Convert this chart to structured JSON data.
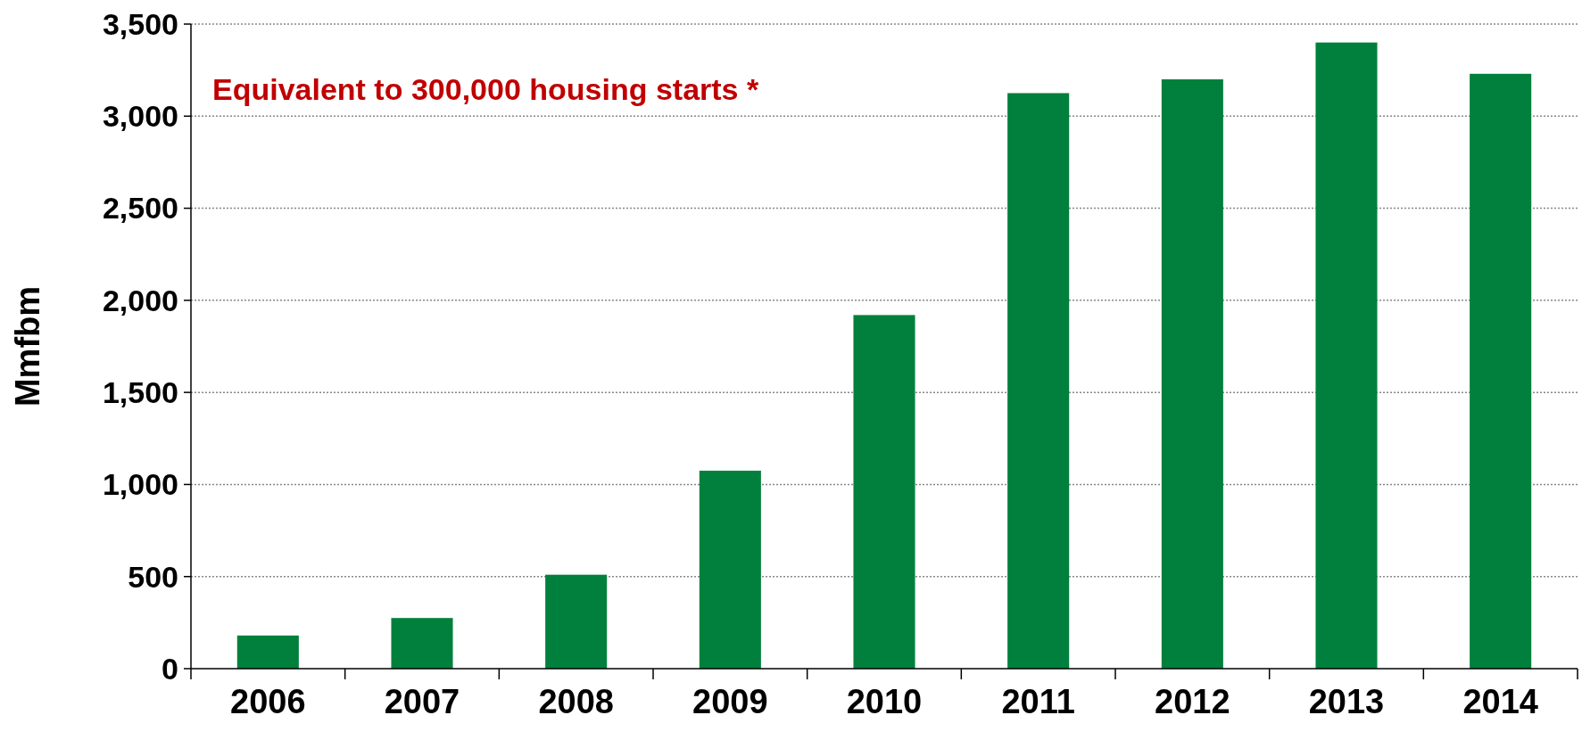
{
  "chart_data": {
    "type": "bar",
    "ylabel": "Mmfbm",
    "categories": [
      "2006",
      "2007",
      "2008",
      "2009",
      "2010",
      "2011",
      "2012",
      "2013",
      "2014"
    ],
    "values": [
      180,
      275,
      510,
      1075,
      1920,
      3125,
      3200,
      3400,
      3230
    ],
    "color": "#00803c",
    "ylim": [
      0,
      3500
    ],
    "yticks": [
      {
        "value": 0,
        "label": "0"
      },
      {
        "value": 500,
        "label": "500"
      },
      {
        "value": 1000,
        "label": "1,000"
      },
      {
        "value": 1500,
        "label": "1,500"
      },
      {
        "value": 2000,
        "label": "2,000"
      },
      {
        "value": 2500,
        "label": "2,500"
      },
      {
        "value": 3000,
        "label": "3,000"
      },
      {
        "value": 3500,
        "label": "3,500"
      }
    ],
    "grid": "y",
    "annotations": [
      "Equivalent to 300,000 housing starts *"
    ]
  }
}
